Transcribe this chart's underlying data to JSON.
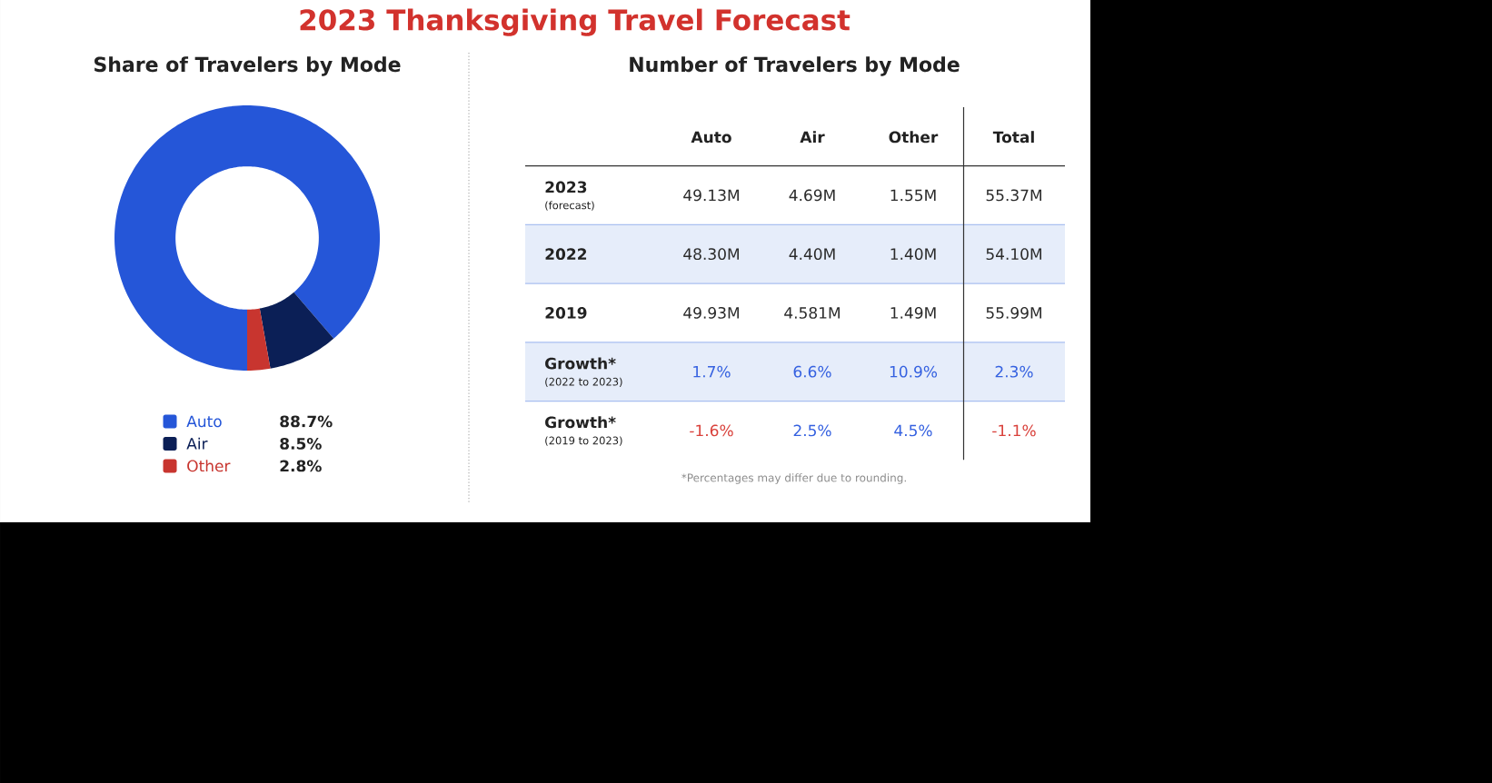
{
  "chart_data": [
    {
      "type": "other",
      "title": "2023 Thanksgiving Travel Forecast"
    },
    {
      "type": "donut",
      "title": "Share of Travelers by Mode",
      "categories": [
        "Auto",
        "Air",
        "Other"
      ],
      "values": [
        88.7,
        8.5,
        2.8
      ],
      "colors": [
        "#2556d8",
        "#0b1f56",
        "#c8352f"
      ],
      "value_labels": [
        "88.7%",
        "8.5%",
        "2.8%"
      ],
      "legend": "bottom"
    },
    {
      "type": "other",
      "title": "Number of Travelers by Mode",
      "categories": [
        "Auto",
        "Air",
        "Other",
        "Total"
      ],
      "y_categories": [
        "2023",
        "2022",
        "2019",
        "Growth*",
        "Growth*"
      ],
      "y2_categories": [
        "(forecast)",
        null,
        null,
        "(2022 to 2023)",
        "(2019 to 2023)"
      ],
      "cell_labels": [
        [
          "49.13M",
          "4.69M",
          "1.55M",
          "55.37M"
        ],
        [
          "48.30M",
          "4.40M",
          "1.40M",
          "54.10M"
        ],
        [
          "49.93M",
          "4.581M",
          "1.49M",
          "55.99M"
        ],
        [
          "1.7%",
          "6.6%",
          "10.9%",
          "2.3%"
        ],
        [
          "-1.6%",
          "2.5%",
          "4.5%",
          "-1.1%"
        ]
      ],
      "colors": [
        [
          "#2b2b2b",
          "#2b2b2b",
          "#2b2b2b",
          "#2b2b2b"
        ],
        [
          "#2b2b2b",
          "#2b2b2b",
          "#2b2b2b",
          "#2b2b2b"
        ],
        [
          "#2b2b2b",
          "#2b2b2b",
          "#2b2b2b",
          "#2b2b2b"
        ],
        [
          "#3561e0",
          "#3561e0",
          "#3561e0",
          "#3561e0"
        ],
        [
          "#d9413b",
          "#3561e0",
          "#3561e0",
          "#d9413b"
        ]
      ],
      "annotations": [
        "*Percentages may differ due to rounding."
      ]
    }
  ]
}
